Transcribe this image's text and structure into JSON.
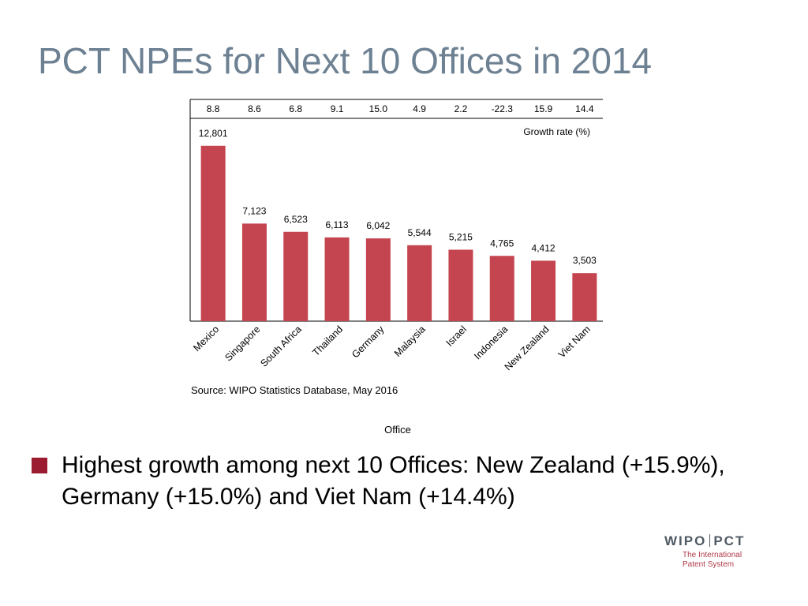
{
  "slide": {
    "title": "PCT NPEs for Next 10 Offices in 2014",
    "source": "Source: WIPO Statistics Database, May 2016",
    "bullet": "Highest growth among next 10 Offices:  New Zealand (+15.9%), Germany (+15.0%) and Viet Nam (+14.4%)"
  },
  "logo": {
    "wipo": "WIPO",
    "pct": "PCT",
    "subtitle_line1": "The International",
    "subtitle_line2": "Patent System"
  },
  "colors": {
    "bar": "#c4444f",
    "title": "#6d8193",
    "bullet": "#9b1b30",
    "logo_text": "#505a64",
    "logo_accent": "#b03a48"
  },
  "chart_data": {
    "type": "bar",
    "categories": [
      "Mexico",
      "Singapore",
      "South Africa",
      "Thailand",
      "Germany",
      "Malaysia",
      "Israel",
      "Indonesia",
      "New Zealand",
      "Viet Nam"
    ],
    "values": [
      12801,
      7123,
      6523,
      6113,
      6042,
      5544,
      5215,
      4765,
      4412,
      3503
    ],
    "value_labels": [
      "12,801",
      "7,123",
      "6,523",
      "6,113",
      "6,042",
      "5,544",
      "5,215",
      "4,765",
      "4,412",
      "3,503"
    ],
    "growth_rates": [
      8.8,
      8.6,
      6.8,
      9.1,
      15.0,
      4.9,
      2.2,
      -22.3,
      15.9,
      14.4
    ],
    "growth_labels": [
      "8.8",
      "8.6",
      "6.8",
      "9.1",
      "15.0",
      "4.9",
      "2.2",
      "-22.3",
      "15.9",
      "14.4"
    ],
    "growth_label": "Growth rate (%)",
    "xlabel": "Office",
    "ylabel": "",
    "ylim": [
      0,
      15000
    ],
    "grid": false,
    "legend": "none"
  }
}
